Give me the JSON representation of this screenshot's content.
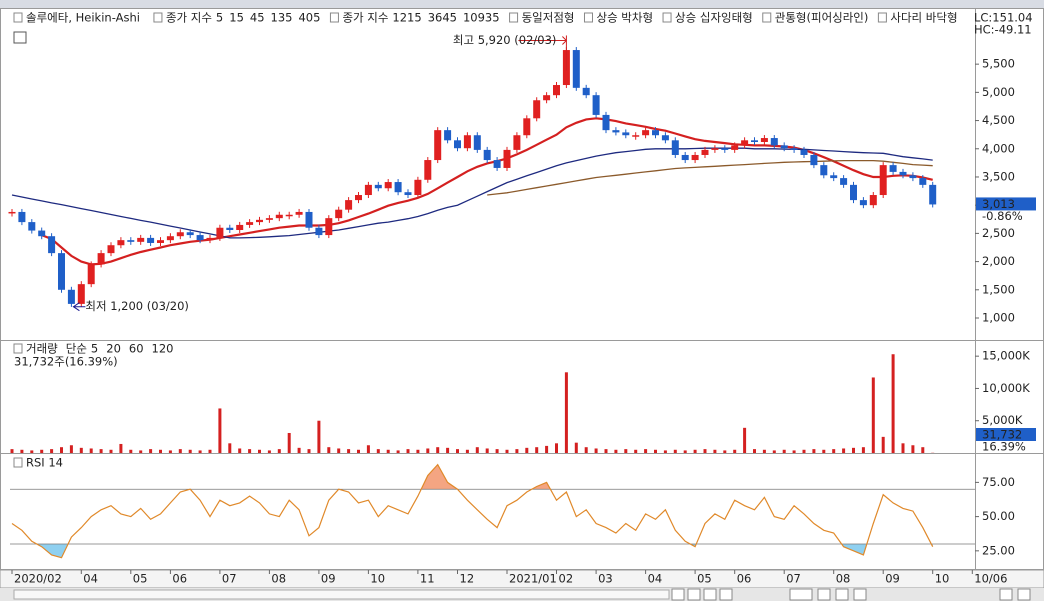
{
  "chart_data": [
    {
      "type": "candlestick",
      "title": "솔루에타, Heikin-Ashi",
      "ma_legends": [
        {
          "label": "종가 지수",
          "periods": [
            5,
            15,
            45,
            135,
            405
          ],
          "colors": [
            "#8a8a8a",
            "#e08a1e",
            "#c0282a",
            "#2a2aa0",
            "#8b4513"
          ]
        },
        {
          "label": "종가 지수",
          "periods": [
            1215,
            3645,
            10935
          ],
          "colors": [
            "#e08a1e",
            "#c0282a",
            "#2a2aa0"
          ]
        }
      ],
      "patterns": [
        "동일저점형",
        "상승 박차형",
        "상승 십자잉태형",
        "관통형(피어싱라인)",
        "사다리 바닥형"
      ],
      "pattern_color": "#a0102a",
      "corner_labels": [
        "LC:151.04",
        "HC:-49.11"
      ],
      "corner_colors": [
        "#d02020",
        "#2040c0"
      ],
      "categories": [
        "2020/02",
        null,
        null,
        null,
        null,
        null,
        null,
        "04",
        null,
        null,
        null,
        null,
        "05",
        null,
        null,
        null,
        "06",
        null,
        null,
        null,
        null,
        "07",
        null,
        null,
        null,
        null,
        "08",
        null,
        null,
        null,
        null,
        "09",
        null,
        null,
        null,
        null,
        "10",
        null,
        null,
        null,
        null,
        "11",
        null,
        null,
        null,
        "12",
        null,
        null,
        null,
        null,
        "2021/01",
        null,
        null,
        null,
        null,
        "02",
        null,
        null,
        null,
        "03",
        null,
        null,
        null,
        null,
        "04",
        null,
        null,
        null,
        null,
        "05",
        null,
        null,
        null,
        "06",
        null,
        null,
        null,
        null,
        "07",
        null,
        null,
        null,
        null,
        "08",
        null,
        null,
        null,
        null,
        "09",
        null,
        null,
        null,
        null,
        "10",
        null,
        null,
        null,
        "10/06"
      ],
      "values": [
        2880,
        2700,
        2550,
        2450,
        2150,
        1500,
        1250,
        1600,
        1950,
        2150,
        2290,
        2380,
        2350,
        2420,
        2330,
        2380,
        2450,
        2520,
        2470,
        2380,
        2420,
        2600,
        2560,
        2650,
        2700,
        2740,
        2770,
        2830,
        2830,
        2880,
        2600,
        2470,
        2770,
        2920,
        3090,
        3180,
        3360,
        3300,
        3410,
        3230,
        3180,
        3450,
        3800,
        4330,
        4150,
        4010,
        4240,
        3980,
        3800,
        3660,
        3980,
        4240,
        4540,
        4860,
        4950,
        5130,
        5750,
        5080,
        4950,
        4600,
        4330,
        4290,
        4240,
        4240,
        4330,
        4240,
        4150,
        3890,
        3800,
        3890,
        3980,
        4010,
        3980,
        4060,
        4150,
        4120,
        4190,
        4060,
        4010,
        3980,
        3890,
        3710,
        3530,
        3480,
        3360,
        3090,
        3000,
        3180,
        3710,
        3590,
        3530,
        3480,
        3360,
        3013,
        null,
        null,
        null,
        null
      ],
      "up_color": "#e02020",
      "down_color": "#1f5fc8",
      "series": [
        {
          "color": "#d42020",
          "values": [
            null,
            null,
            null,
            2470,
            2400,
            2250,
            2100,
            2000,
            1950,
            1960,
            2000,
            2060,
            2120,
            2170,
            2210,
            2250,
            2290,
            2320,
            2350,
            2370,
            2390,
            2420,
            2450,
            2480,
            2510,
            2540,
            2570,
            2600,
            2620,
            2640,
            2640,
            2640,
            2650,
            2680,
            2730,
            2790,
            2850,
            2920,
            2990,
            3040,
            3080,
            3130,
            3200,
            3300,
            3400,
            3500,
            3600,
            3680,
            3740,
            3780,
            3830,
            3900,
            3980,
            4070,
            4160,
            4250,
            4380,
            4460,
            4520,
            4540,
            4520,
            4490,
            4450,
            4420,
            4390,
            4350,
            4320,
            4270,
            4220,
            4170,
            4140,
            4120,
            4100,
            4080,
            4070,
            4060,
            4060,
            4050,
            4040,
            4020,
            3980,
            3920,
            3850,
            3780,
            3700,
            3620,
            3550,
            3500,
            3500,
            3520,
            3530,
            3520,
            3490,
            3450,
            null,
            null,
            null,
            null
          ]
        },
        {
          "color": "#1e2a80",
          "values": [
            3180,
            3145,
            3110,
            3075,
            3040,
            3010,
            2975,
            2940,
            2905,
            2870,
            2835,
            2800,
            2765,
            2730,
            2700,
            2665,
            2630,
            2595,
            2560,
            2525,
            2490,
            2455,
            2420,
            2420,
            2425,
            2430,
            2440,
            2450,
            2460,
            2480,
            2500,
            2520,
            2540,
            2560,
            2590,
            2620,
            2650,
            2680,
            2700,
            2730,
            2760,
            2800,
            2850,
            2910,
            2960,
            3000,
            3080,
            3160,
            3240,
            3320,
            3400,
            3460,
            3520,
            3580,
            3640,
            3700,
            3750,
            3790,
            3830,
            3870,
            3900,
            3930,
            3950,
            3970,
            3990,
            4000,
            4000,
            4000,
            4000,
            4005,
            4010,
            4010,
            4010,
            4010,
            4010,
            4000,
            4000,
            4000,
            3995,
            3990,
            3990,
            3980,
            3970,
            3960,
            3950,
            3940,
            3930,
            3925,
            3920,
            3890,
            3860,
            3840,
            3820,
            3800,
            null,
            null,
            null,
            null
          ]
        },
        {
          "color": "#8b5a2b",
          "values": [
            null,
            null,
            null,
            null,
            null,
            null,
            null,
            null,
            null,
            null,
            null,
            null,
            null,
            null,
            null,
            null,
            null,
            null,
            null,
            null,
            null,
            null,
            null,
            null,
            null,
            null,
            null,
            null,
            null,
            null,
            null,
            null,
            null,
            null,
            null,
            null,
            null,
            null,
            null,
            null,
            null,
            null,
            null,
            null,
            null,
            null,
            null,
            null,
            3180,
            3200,
            3220,
            3250,
            3280,
            3310,
            3340,
            3370,
            3400,
            3430,
            3460,
            3490,
            3510,
            3530,
            3550,
            3570,
            3590,
            3610,
            3630,
            3650,
            3660,
            3670,
            3680,
            3690,
            3700,
            3710,
            3720,
            3730,
            3740,
            3750,
            3760,
            3765,
            3770,
            3775,
            3780,
            3785,
            3790,
            3790,
            3790,
            3790,
            3780,
            3760,
            3740,
            3720,
            3710,
            3700,
            null,
            null,
            null,
            null
          ]
        }
      ],
      "ylim": [
        610,
        6460
      ],
      "yticks": [
        {
          "value": 1000,
          "label": "1,000"
        },
        {
          "value": 1500,
          "label": "1,500"
        },
        {
          "value": 2000,
          "label": "2,000"
        },
        {
          "value": 2500,
          "label": "2,500"
        },
        {
          "value": 3000,
          "label": "3,000"
        },
        {
          "value": 3500,
          "label": "3,500"
        },
        {
          "value": 4000,
          "label": "4,000"
        },
        {
          "value": 4500,
          "label": "4,500"
        },
        {
          "value": 5000,
          "label": "5,000"
        },
        {
          "value": 5500,
          "label": "5,500"
        }
      ],
      "last_label": "3,013",
      "last_change": "-0.86%",
      "annotations": [
        {
          "index": 56,
          "value": 5920,
          "label": "최고 5,920 (02/03)",
          "color": "#d02020"
        },
        {
          "index": 6,
          "value": 1200,
          "label": "최저 1,200 (03/20)",
          "color": "#1a1a90"
        }
      ]
    },
    {
      "type": "bar",
      "title": "거래량",
      "ma_legend": {
        "label": "단순",
        "periods": [
          5,
          20,
          60,
          120
        ],
        "colors": [
          "#a020c0",
          "#c8a800",
          "#208020",
          "#8a8a8a"
        ]
      },
      "info": "31,732주(16.39%)",
      "values": [
        600,
        500,
        400,
        500,
        600,
        900,
        1200,
        800,
        700,
        600,
        500,
        1400,
        500,
        400,
        600,
        500,
        400,
        600,
        500,
        400,
        500,
        6900,
        1500,
        700,
        600,
        500,
        400,
        600,
        3100,
        800,
        600,
        5000,
        900,
        700,
        600,
        500,
        1200,
        600,
        500,
        400,
        600,
        500,
        700,
        900,
        800,
        600,
        500,
        900,
        700,
        600,
        500,
        600,
        800,
        900,
        1100,
        1500,
        12500,
        1600,
        900,
        700,
        600,
        500,
        600,
        500,
        600,
        500,
        400,
        500,
        400,
        500,
        600,
        500,
        400,
        500,
        3900,
        600,
        500,
        400,
        500,
        400,
        500,
        600,
        500,
        600,
        700,
        800,
        900,
        11700,
        2500,
        15300,
        1500,
        1200,
        900,
        31.732,
        null,
        null,
        null,
        null
      ],
      "color": "#d42020",
      "ylim": [
        0,
        17350
      ],
      "yticks": [
        {
          "value": 5000,
          "label": "5,000K"
        },
        {
          "value": 10000,
          "label": "10,000K"
        },
        {
          "value": 15000,
          "label": "15,000K"
        }
      ],
      "last_label": "31,732",
      "last_ratio": "16.39%"
    },
    {
      "type": "line",
      "title": "RSI 14",
      "values": [
        45,
        40,
        32,
        28,
        22,
        20,
        35,
        42,
        50,
        55,
        58,
        52,
        50,
        56,
        48,
        52,
        60,
        68,
        70,
        62,
        50,
        62,
        58,
        60,
        65,
        60,
        52,
        50,
        62,
        55,
        36,
        42,
        62,
        70,
        68,
        60,
        62,
        50,
        58,
        55,
        52,
        65,
        80,
        88,
        75,
        70,
        62,
        55,
        48,
        42,
        58,
        62,
        68,
        72,
        75,
        62,
        68,
        50,
        55,
        45,
        42,
        38,
        45,
        40,
        52,
        48,
        55,
        40,
        32,
        28,
        45,
        52,
        48,
        62,
        58,
        55,
        64,
        50,
        48,
        58,
        52,
        45,
        40,
        38,
        28,
        25,
        22,
        45,
        66,
        60,
        56,
        54,
        42,
        28,
        null,
        null,
        null,
        null
      ],
      "color": "#e0892a",
      "ylim": [
        11,
        95
      ],
      "yticks": [
        {
          "value": 25,
          "label": "25.00"
        },
        {
          "value": 50,
          "label": "50.00"
        },
        {
          "value": 75,
          "label": "75.00"
        }
      ],
      "levels": [
        70,
        30
      ],
      "level_colors": [
        "#f4a582",
        "#8fd0f0"
      ]
    }
  ]
}
